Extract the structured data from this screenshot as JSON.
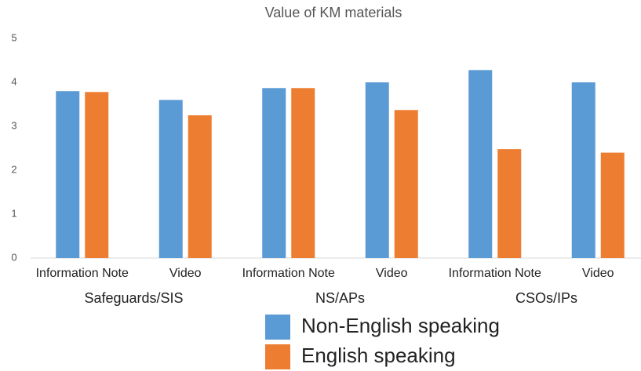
{
  "chart_data": {
    "type": "bar",
    "title": "Value of KM materials",
    "categories": [
      "Information Note",
      "Video",
      "Information Note",
      "Video",
      "Information Note",
      "Video"
    ],
    "groups": [
      "Safeguards/SIS",
      "NS/APs",
      "CSOs/IPs"
    ],
    "series": [
      {
        "name": "Non-English speaking",
        "color": "#5b9bd5",
        "values": [
          3.8,
          3.6,
          3.87,
          4.0,
          4.28,
          4.0
        ]
      },
      {
        "name": "English speaking",
        "color": "#ed7d31",
        "values": [
          3.78,
          3.25,
          3.87,
          3.37,
          2.48,
          2.4
        ]
      }
    ],
    "ylim": [
      0,
      5
    ],
    "yticks": [
      0,
      1,
      2,
      3,
      4,
      5
    ],
    "grid": false,
    "legend": "bottom"
  }
}
